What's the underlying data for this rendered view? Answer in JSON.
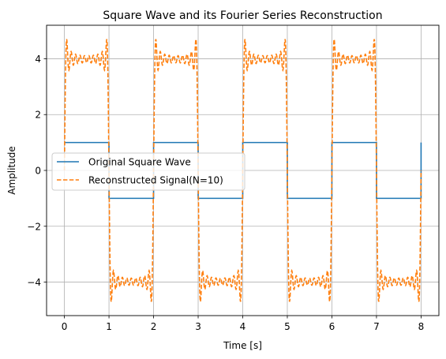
{
  "chart_data": {
    "type": "line",
    "title": "Square Wave and its Fourier Series Reconstruction",
    "xlabel": "Time [s]",
    "ylabel": "Amplitude",
    "xlim": [
      -0.4,
      8.4
    ],
    "ylim": [
      -5.2,
      5.2
    ],
    "xticks": [
      0,
      1,
      2,
      3,
      4,
      5,
      6,
      7,
      8
    ],
    "yticks": [
      -4,
      -2,
      0,
      2,
      4
    ],
    "grid": true,
    "legend": "center-left",
    "period": 2,
    "series": [
      {
        "name": "Original Square Wave",
        "style": "solid",
        "color": "#1f77b4",
        "amplitude": 1,
        "x": [
          0,
          1,
          1,
          2,
          2,
          3,
          3,
          4,
          4,
          5,
          5,
          6,
          6,
          7,
          7,
          8,
          8
        ],
        "y": [
          1,
          1,
          -1,
          -1,
          1,
          1,
          -1,
          -1,
          1,
          1,
          -1,
          -1,
          1,
          1,
          -1,
          -1,
          1
        ]
      },
      {
        "name": "Reconstructed Signal(N=10)",
        "style": "dashed",
        "color": "#ff7f0e",
        "harmonics": 10,
        "peak_amplitude": 4.7
      }
    ]
  }
}
